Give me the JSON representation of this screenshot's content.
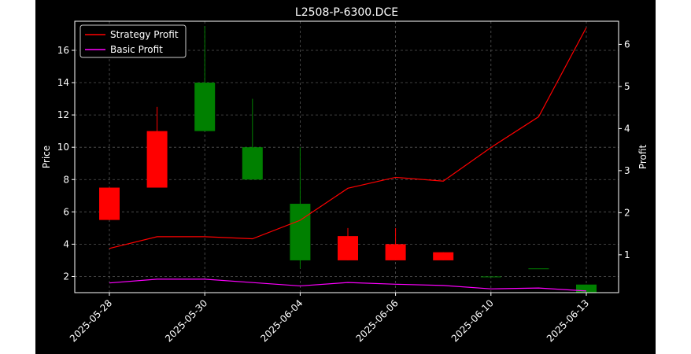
{
  "chart_data": {
    "type": "candlestick+line",
    "title": "L2508-P-6300.DCE",
    "ylabel_left": "Price",
    "ylabel_right": "Profit",
    "ylim_left": [
      1.0,
      17.8
    ],
    "ylim_right": [
      0.1,
      6.55
    ],
    "yticks_left": [
      2,
      4,
      6,
      8,
      10,
      12,
      14,
      16
    ],
    "yticks_right": [
      1,
      2,
      3,
      4,
      5,
      6
    ],
    "xtick_labels": [
      "2025-05-28",
      "2025-05-30",
      "2025-06-04",
      "2025-06-06",
      "2025-06-10",
      "2025-06-13"
    ],
    "xtick_index": [
      0,
      2,
      4,
      6,
      8,
      10
    ],
    "grid": true,
    "legend_position": "top-left",
    "colors": {
      "up": "#008000",
      "down": "#ff0000",
      "strategy": "#ff0000",
      "basic": "#ff00ff",
      "background": "#000000",
      "grid": "#555555"
    },
    "candles": [
      {
        "open": 7.5,
        "close": 5.5,
        "high": 7.5,
        "low": 5.5
      },
      {
        "open": 11.0,
        "close": 7.5,
        "high": 12.5,
        "low": 7.5
      },
      {
        "open": 11.0,
        "close": 14.0,
        "high": 17.5,
        "low": 11.0
      },
      {
        "open": 8.0,
        "close": 10.0,
        "high": 13.0,
        "low": 8.0
      },
      {
        "open": 3.0,
        "close": 6.5,
        "high": 10.0,
        "low": 2.5
      },
      {
        "open": 4.5,
        "close": 3.0,
        "high": 5.0,
        "low": 3.0
      },
      {
        "open": 4.0,
        "close": 3.0,
        "high": 5.0,
        "low": 3.0
      },
      {
        "open": 3.5,
        "close": 3.0,
        "high": 3.5,
        "low": 3.0
      },
      {
        "open": 2.0,
        "close": 2.0,
        "high": 2.0,
        "low": 2.0
      },
      {
        "open": 2.5,
        "close": 2.5,
        "high": 2.5,
        "low": 2.5
      },
      {
        "open": 1.0,
        "close": 1.5,
        "high": 1.5,
        "low": 1.0
      }
    ],
    "series": [
      {
        "name": "Strategy Profit",
        "values": [
          1.15,
          1.43,
          1.43,
          1.38,
          1.82,
          2.58,
          2.84,
          2.75,
          3.55,
          4.28,
          6.4
        ]
      },
      {
        "name": "Basic Profit",
        "values": [
          0.33,
          0.42,
          0.42,
          0.34,
          0.26,
          0.34,
          0.3,
          0.27,
          0.19,
          0.21,
          0.14
        ]
      }
    ]
  }
}
